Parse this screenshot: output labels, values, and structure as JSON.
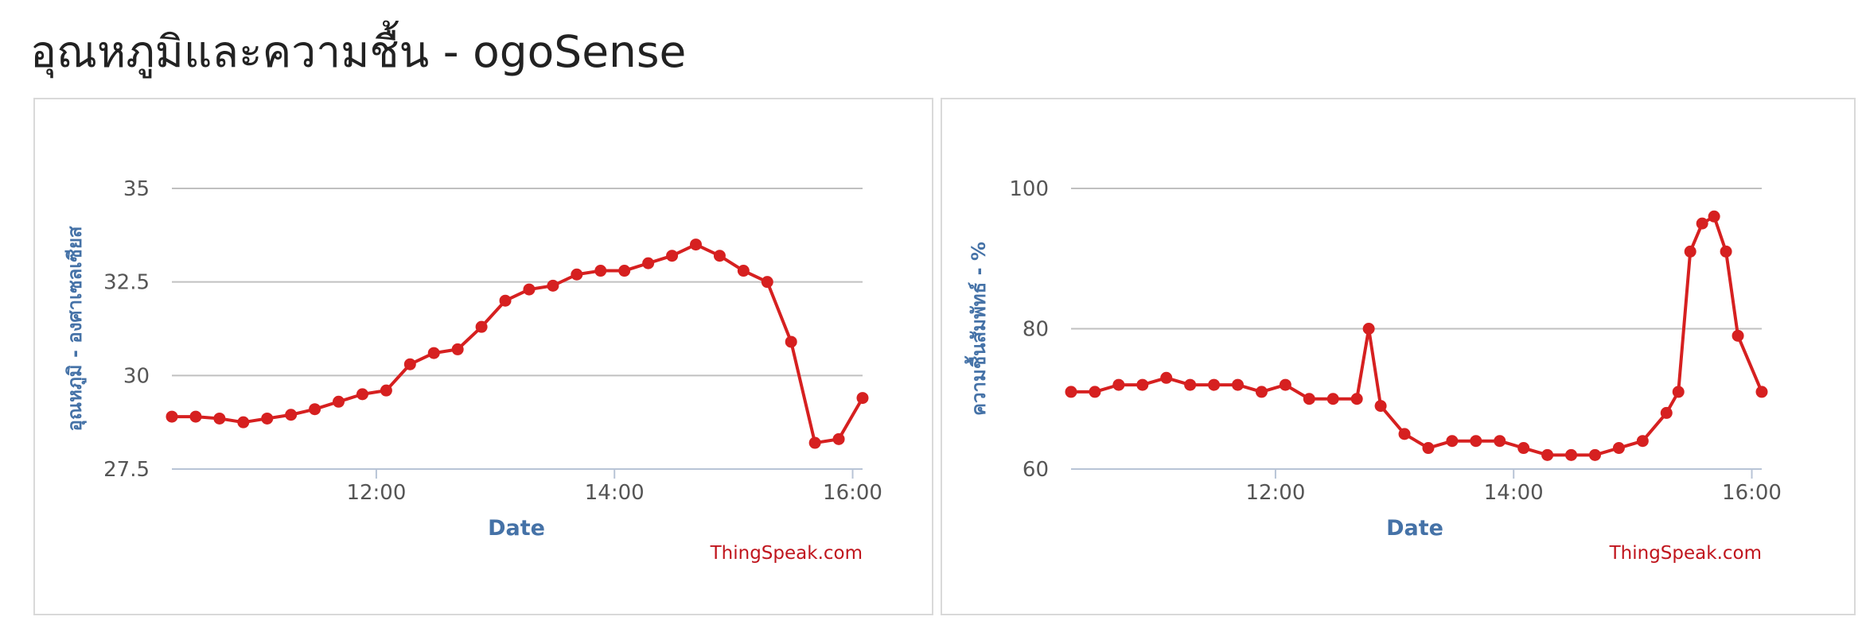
{
  "page": {
    "title": "อุณหภูมิและความชื้น - ogoSense"
  },
  "colors": {
    "series": "#d62020",
    "axis_title": "#4572a7",
    "grid": "#c0c0c0",
    "credit": "#c0151d"
  },
  "chart_data": [
    {
      "type": "line",
      "xlabel": "Date",
      "ylabel": "อุณหภูมิ - องศาเซลเซียส",
      "credit": "ThingSpeak.com",
      "ylim": [
        27.5,
        35
      ],
      "yticks": [
        "27.5",
        "30",
        "32.5",
        "35"
      ],
      "xlim": [
        "10:17",
        "16:05"
      ],
      "xticks": [
        "12:00",
        "14:00",
        "16:00"
      ],
      "grid": true,
      "legend": "none",
      "series": [
        {
          "x": [
            "10:17",
            "10:29",
            "10:41",
            "10:53",
            "11:05",
            "11:17",
            "11:29",
            "11:41",
            "11:53",
            "12:05",
            "12:17",
            "12:29",
            "12:41",
            "12:53",
            "13:05",
            "13:17",
            "13:29",
            "13:41",
            "13:53",
            "14:05",
            "14:17",
            "14:29",
            "14:41",
            "14:53",
            "15:05",
            "15:17",
            "15:29",
            "15:41",
            "15:53",
            "16:05"
          ],
          "values": [
            28.9,
            28.9,
            28.85,
            28.75,
            28.85,
            28.95,
            29.1,
            29.3,
            29.5,
            29.6,
            30.3,
            30.6,
            30.7,
            31.3,
            32.0,
            32.3,
            32.4,
            32.7,
            32.8,
            32.8,
            33.0,
            33.2,
            33.5,
            33.2,
            32.8,
            32.5,
            30.9,
            28.2,
            28.3,
            29.4
          ]
        }
      ]
    },
    {
      "type": "line",
      "xlabel": "Date",
      "ylabel": "ความชื้นสัมพัทธ์ - %",
      "credit": "ThingSpeak.com",
      "ylim": [
        60,
        100
      ],
      "yticks": [
        "60",
        "80",
        "100"
      ],
      "xlim": [
        "10:17",
        "16:05"
      ],
      "xticks": [
        "12:00",
        "14:00",
        "16:00"
      ],
      "grid": true,
      "legend": "none",
      "series": [
        {
          "x": [
            "10:17",
            "10:29",
            "10:41",
            "10:53",
            "11:05",
            "11:17",
            "11:29",
            "11:41",
            "11:53",
            "12:05",
            "12:17",
            "12:29",
            "12:41",
            "12:47",
            "12:53",
            "13:05",
            "13:17",
            "13:29",
            "13:41",
            "13:53",
            "14:05",
            "14:17",
            "14:29",
            "14:41",
            "14:53",
            "15:05",
            "15:17",
            "15:23",
            "15:29",
            "15:35",
            "15:41",
            "15:47",
            "15:53",
            "16:05"
          ],
          "values": [
            71,
            71,
            72,
            72,
            73,
            72,
            72,
            72,
            71,
            72,
            70,
            70,
            70,
            80,
            69,
            65,
            63,
            64,
            64,
            64,
            63,
            62,
            62,
            62,
            63,
            64,
            68,
            71,
            91,
            95,
            96,
            91,
            79,
            71
          ]
        }
      ]
    }
  ]
}
